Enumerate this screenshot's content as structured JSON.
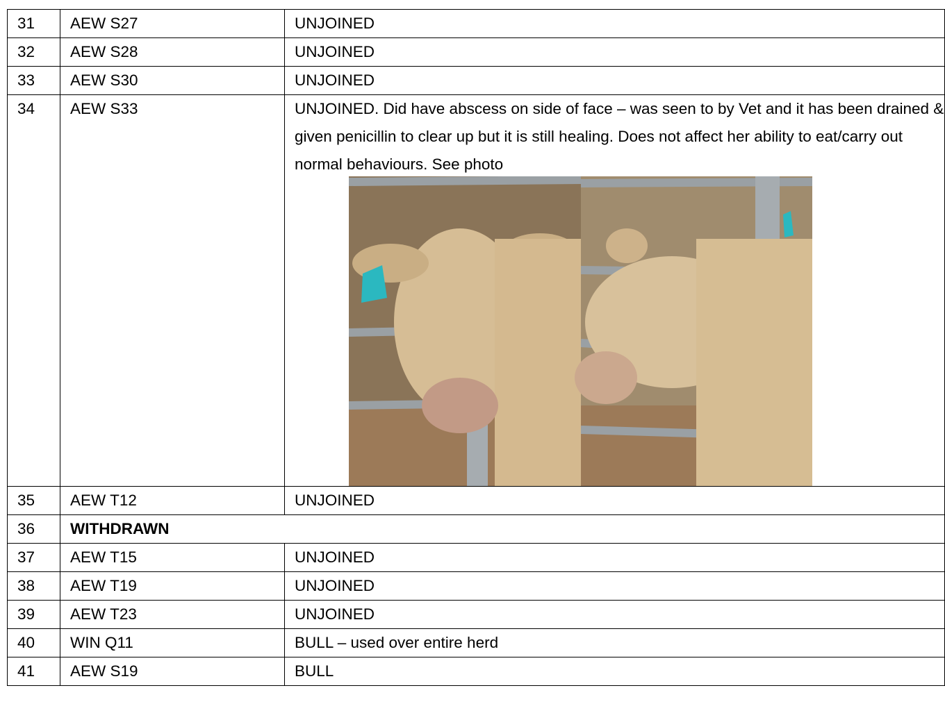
{
  "table": {
    "rows": [
      [
        "31",
        "AEW S27",
        "UNJOINED"
      ],
      [
        "32",
        "AEW S28",
        "UNJOINED"
      ],
      [
        "33",
        "AEW S30",
        "UNJOINED"
      ],
      [
        "34",
        "AEW S33",
        "UNJOINED. Did have abscess on side of face – was seen to by Vet and it has been drained & given penicillin to clear up but it is still healing. Does not affect her ability to eat/carry out normal behaviours. See photo"
      ],
      [
        "35",
        "AEW T12",
        "UNJOINED"
      ],
      [
        "36",
        "WITHDRAWN"
      ],
      [
        "37",
        "AEW T15",
        "UNJOINED"
      ],
      [
        "38",
        "AEW T19",
        "UNJOINED"
      ],
      [
        "39",
        "AEW T23",
        "UNJOINED"
      ],
      [
        "40",
        "WIN Q11",
        "BULL – used over entire herd"
      ],
      [
        "41",
        "AEW S19",
        "BULL"
      ]
    ]
  }
}
